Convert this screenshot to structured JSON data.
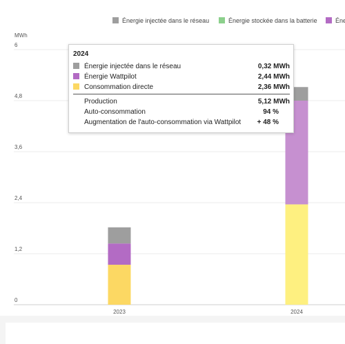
{
  "legend": [
    {
      "label": "Énergie injectée dans le réseau",
      "color": "#9e9e9e"
    },
    {
      "label": "Énergie stockée dans la batterie",
      "color": "#8cd08c"
    },
    {
      "label": "Éne",
      "color": "#b36bc4"
    }
  ],
  "unit": "MWh",
  "chart_data": {
    "type": "bar",
    "stacked": true,
    "categories": [
      "2023",
      "2024"
    ],
    "yticks": [
      "0",
      "1,2",
      "2,4",
      "3,6",
      "4,8",
      "6"
    ],
    "ylim": [
      0,
      6
    ],
    "grid": true,
    "legend_position": "top",
    "series": [
      {
        "name": "Consommation directe",
        "color": "#fef080",
        "colors": [
          "#fcd863",
          "#fef080"
        ],
        "values": [
          0.94,
          2.36
        ]
      },
      {
        "name": "Énergie Wattpilot",
        "color": "#c690d0",
        "colors": [
          "#b36bc4",
          "#c690d0"
        ],
        "values": [
          0.5,
          2.44
        ]
      },
      {
        "name": "Énergie injectée dans le réseau",
        "color": "#9e9e9e",
        "values": [
          0.38,
          0.32
        ]
      }
    ]
  },
  "tooltip": {
    "title": "2024",
    "rows": [
      {
        "label": "Énergie injectée dans le réseau",
        "value": "0,32 MWh",
        "color": "#9e9e9e"
      },
      {
        "label": "Énergie Wattpilot",
        "value": "2,44 MWh",
        "color": "#b36bc4"
      },
      {
        "label": "Consommation directe",
        "value": "2,36 MWh",
        "color": "#fcd863"
      }
    ],
    "summary": [
      {
        "label": "Production",
        "value": "5,12 MWh"
      },
      {
        "label": "Auto-consommation",
        "value": "94 %"
      },
      {
        "label": "Augmentation de l'auto-consommation via Wattpilot",
        "value": "+ 48 %"
      }
    ]
  }
}
